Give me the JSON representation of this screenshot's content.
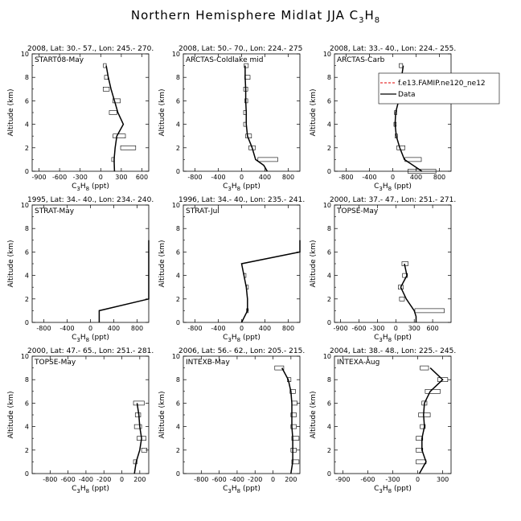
{
  "title_text": "Northern Hemisphere Midlat JJA C",
  "title_sub": "3",
  "title_mid": "H",
  "title_sub2": "8",
  "chart_data": [
    {
      "type": "line",
      "header": "2008, Lat:  30.- 57., Lon: 245.- 270.",
      "label": "START08-May",
      "xlim": [
        -1000,
        700
      ],
      "xticks": [
        -900,
        -600,
        -300,
        0,
        300,
        600
      ],
      "ylim": [
        0,
        10
      ],
      "yticks": [
        0,
        2,
        4,
        6,
        8,
        10
      ],
      "ylabel": "Altitude (km)",
      "xlabel_main": "C",
      "xlabel_s1": "3",
      "xlabel_h": "H",
      "xlabel_s2": "8",
      "xlabel_unit": " (ppt)",
      "model": [
        [
          200,
          0
        ],
        [
          195,
          1
        ],
        [
          210,
          2
        ],
        [
          235,
          3
        ],
        [
          330,
          4
        ],
        [
          250,
          5
        ],
        [
          200,
          6
        ],
        [
          150,
          7
        ],
        [
          110,
          8
        ],
        [
          80,
          9
        ]
      ],
      "boxes": [
        [
          180,
          1,
          40
        ],
        [
          400,
          2,
          220
        ],
        [
          270,
          3,
          180
        ],
        [
          180,
          5,
          110
        ],
        [
          230,
          6,
          110
        ],
        [
          80,
          7,
          90
        ],
        [
          80,
          8,
          50
        ],
        [
          60,
          9,
          40
        ]
      ],
      "legend": null
    },
    {
      "type": "line",
      "header": "2008, Lat:  50.- 70., Lon: 224.- 275",
      "label": "ARCTAS-Coldlake mid",
      "xlim": [
        -1000,
        1000
      ],
      "xticks": [
        -800,
        -400,
        0,
        400,
        800
      ],
      "ylim": [
        0,
        10
      ],
      "yticks": [
        0,
        2,
        4,
        6,
        8,
        10
      ],
      "ylabel": "Altitude (km)",
      "xlabel_main": "C",
      "xlabel_s1": "3",
      "xlabel_h": "H",
      "xlabel_s2": "8",
      "xlabel_unit": " (ppt)",
      "model": [
        [
          440,
          0
        ],
        [
          380,
          0.5
        ],
        [
          240,
          1
        ],
        [
          180,
          2
        ],
        [
          100,
          3
        ],
        [
          80,
          4
        ],
        [
          80,
          5
        ],
        [
          70,
          6
        ],
        [
          70,
          7
        ],
        [
          60,
          8
        ],
        [
          60,
          9
        ]
      ],
      "boxes": [
        [
          450,
          1,
          340
        ],
        [
          180,
          2,
          110
        ],
        [
          120,
          3,
          100
        ],
        [
          60,
          4,
          50
        ],
        [
          60,
          5,
          50
        ],
        [
          80,
          6,
          50
        ],
        [
          70,
          7,
          70
        ],
        [
          100,
          8,
          90
        ],
        [
          80,
          9,
          70
        ]
      ],
      "legend": null
    },
    {
      "type": "line",
      "header": "2008, Lat:  33.- 40., Lon: 224.- 255.",
      "label": "ARCTAS-Carb",
      "xlim": [
        -1000,
        1000
      ],
      "xticks": [
        -800,
        -400,
        0,
        400,
        800
      ],
      "ylim": [
        0,
        10
      ],
      "yticks": [
        0,
        2,
        4,
        6,
        8,
        10
      ],
      "ylabel": "Altitude (km)",
      "xlabel_main": "C",
      "xlabel_s1": "3",
      "xlabel_h": "H",
      "xlabel_s2": "8",
      "xlabel_unit": " (ppt)",
      "model": [
        [
          500,
          0
        ],
        [
          200,
          1
        ],
        [
          120,
          2
        ],
        [
          60,
          3
        ],
        [
          40,
          4
        ],
        [
          50,
          5
        ],
        [
          100,
          6
        ],
        [
          120,
          7
        ],
        [
          150,
          8
        ],
        [
          180,
          9
        ]
      ],
      "boxes": [
        [
          500,
          0,
          480
        ],
        [
          350,
          1,
          280
        ],
        [
          140,
          2,
          140
        ],
        [
          60,
          3,
          40
        ],
        [
          40,
          4,
          40
        ],
        [
          50,
          5,
          40
        ],
        [
          100,
          6,
          80
        ],
        [
          150,
          7,
          100
        ],
        [
          170,
          8,
          70
        ],
        [
          140,
          9,
          60
        ]
      ],
      "legend": {
        "model_label": "f.e13.FAMIP.ne120_ne12",
        "data_label": "Data"
      }
    },
    {
      "type": "line",
      "header": "1995, Lat:  34.- 40., Lon: 234.- 240.",
      "label": "STRAT-May",
      "xlim": [
        -1000,
        1000
      ],
      "xticks": [
        -800,
        -400,
        0,
        400,
        800
      ],
      "ylim": [
        0,
        10
      ],
      "yticks": [
        0,
        2,
        4,
        6,
        8,
        10
      ],
      "ylabel": "Altitude (km)",
      "xlabel_main": "C",
      "xlabel_s1": "3",
      "xlabel_h": "H",
      "xlabel_s2": "8",
      "xlabel_unit": " (ppt)",
      "model": [
        [
          150,
          0
        ],
        [
          150,
          1
        ],
        [
          1000,
          2
        ],
        [
          1000,
          3
        ],
        [
          1000,
          4
        ],
        [
          1000,
          5
        ],
        [
          1000,
          6
        ],
        [
          1000,
          7
        ]
      ],
      "boxes": [],
      "legend": null
    },
    {
      "type": "line",
      "header": "1996, Lat:  34.- 40., Lon: 235.- 241.",
      "label": "STRAT-Jul",
      "xlim": [
        -1000,
        1000
      ],
      "xticks": [
        -800,
        -400,
        0,
        400,
        800
      ],
      "ylim": [
        0,
        10
      ],
      "yticks": [
        0,
        2,
        4,
        6,
        8,
        10
      ],
      "ylabel": "Altitude (km)",
      "xlabel_main": "C",
      "xlabel_s1": "3",
      "xlabel_h": "H",
      "xlabel_s2": "8",
      "xlabel_unit": " (ppt)",
      "model": [
        [
          0,
          0
        ],
        [
          100,
          1
        ],
        [
          100,
          2
        ],
        [
          80,
          3
        ],
        [
          40,
          4
        ],
        [
          0,
          5
        ],
        [
          1000,
          6
        ],
        [
          1000,
          7
        ]
      ],
      "boxes": [
        [
          100,
          1,
          30
        ],
        [
          100,
          3,
          30
        ],
        [
          60,
          4,
          30
        ]
      ],
      "legend": null
    },
    {
      "type": "line",
      "header": "2000, Lat:  37.- 47., Lon: 251.- 271.",
      "label": "TOPSE-May",
      "xlim": [
        -1000,
        900
      ],
      "xticks": [
        -900,
        -600,
        -300,
        0,
        300,
        600
      ],
      "ylim": [
        0,
        10
      ],
      "yticks": [
        0,
        2,
        4,
        6,
        8,
        10
      ],
      "ylabel": "Altitude (km)",
      "xlabel_main": "C",
      "xlabel_s1": "3",
      "xlabel_h": "H",
      "xlabel_s2": "8",
      "xlabel_unit": " (ppt)",
      "model": [
        [
          330,
          0
        ],
        [
          330,
          0.5
        ],
        [
          300,
          1
        ],
        [
          170,
          2
        ],
        [
          80,
          3
        ],
        [
          180,
          4
        ],
        [
          140,
          5
        ]
      ],
      "boxes": [
        [
          550,
          1,
          480
        ],
        [
          100,
          2,
          80
        ],
        [
          80,
          3,
          80
        ],
        [
          150,
          4,
          80
        ],
        [
          150,
          5,
          100
        ]
      ],
      "legend": null
    },
    {
      "type": "line",
      "header": "2000, Lat:  47.- 65., Lon: 251.- 281.",
      "label": "TOPSE-May",
      "xlim": [
        -1000,
        300
      ],
      "xticks": [
        -800,
        -600,
        -400,
        -200,
        0,
        200
      ],
      "ylim": [
        0,
        10
      ],
      "yticks": [
        0,
        2,
        4,
        6,
        8,
        10
      ],
      "ylabel": "Altitude (km)",
      "xlabel_main": "C",
      "xlabel_s1": "3",
      "xlabel_h": "H",
      "xlabel_s2": "8",
      "xlabel_unit": " (ppt)",
      "model": [
        [
          140,
          0
        ],
        [
          160,
          1
        ],
        [
          200,
          2
        ],
        [
          220,
          3
        ],
        [
          200,
          4
        ],
        [
          190,
          5
        ],
        [
          170,
          6
        ]
      ],
      "boxes": [
        [
          150,
          1,
          40
        ],
        [
          250,
          2,
          60
        ],
        [
          220,
          3,
          100
        ],
        [
          180,
          4,
          80
        ],
        [
          180,
          5,
          60
        ],
        [
          190,
          6,
          120
        ]
      ],
      "legend": null
    },
    {
      "type": "line",
      "header": "2006, Lat:  56.- 62., Lon: 205.- 215.",
      "label": "INTEXB-May",
      "xlim": [
        -1000,
        300
      ],
      "xticks": [
        -800,
        -600,
        -400,
        -200,
        0,
        200
      ],
      "ylim": [
        0,
        10
      ],
      "yticks": [
        0,
        2,
        4,
        6,
        8,
        10
      ],
      "ylabel": "Altitude (km)",
      "xlabel_main": "C",
      "xlabel_s1": "3",
      "xlabel_h": "H",
      "xlabel_s2": "8",
      "xlabel_unit": " (ppt)",
      "model": [
        [
          200,
          0
        ],
        [
          220,
          1
        ],
        [
          220,
          2
        ],
        [
          220,
          3
        ],
        [
          210,
          4
        ],
        [
          210,
          5
        ],
        [
          210,
          6
        ],
        [
          200,
          7
        ],
        [
          170,
          8
        ],
        [
          100,
          9
        ]
      ],
      "boxes": [
        [
          250,
          1,
          80
        ],
        [
          230,
          2,
          60
        ],
        [
          250,
          3,
          80
        ],
        [
          230,
          4,
          60
        ],
        [
          230,
          5,
          60
        ],
        [
          240,
          6,
          60
        ],
        [
          220,
          7,
          60
        ],
        [
          180,
          8,
          40
        ],
        [
          70,
          9,
          100
        ]
      ],
      "legend": null
    },
    {
      "type": "line",
      "header": "2004, Lat:  38.- 48., Lon: 225.- 245.",
      "label": "INTEXA-Aug",
      "xlim": [
        -1000,
        400
      ],
      "xticks": [
        -900,
        -600,
        -300,
        0,
        300
      ],
      "ylim": [
        0,
        10
      ],
      "yticks": [
        0,
        2,
        4,
        6,
        8,
        10
      ],
      "ylabel": "Altitude (km)",
      "xlabel_main": "C",
      "xlabel_s1": "3",
      "xlabel_h": "H",
      "xlabel_s2": "8",
      "xlabel_unit": " (ppt)",
      "model": [
        [
          20,
          0
        ],
        [
          100,
          1
        ],
        [
          50,
          2
        ],
        [
          50,
          3
        ],
        [
          80,
          4
        ],
        [
          70,
          5
        ],
        [
          80,
          6
        ],
        [
          150,
          7
        ],
        [
          300,
          8
        ],
        [
          150,
          9
        ]
      ],
      "boxes": [
        [
          40,
          1,
          120
        ],
        [
          20,
          2,
          80
        ],
        [
          20,
          3,
          80
        ],
        [
          60,
          4,
          60
        ],
        [
          80,
          5,
          140
        ],
        [
          80,
          6,
          60
        ],
        [
          180,
          7,
          180
        ],
        [
          300,
          8,
          120
        ],
        [
          80,
          9,
          100
        ]
      ],
      "legend": null
    }
  ]
}
